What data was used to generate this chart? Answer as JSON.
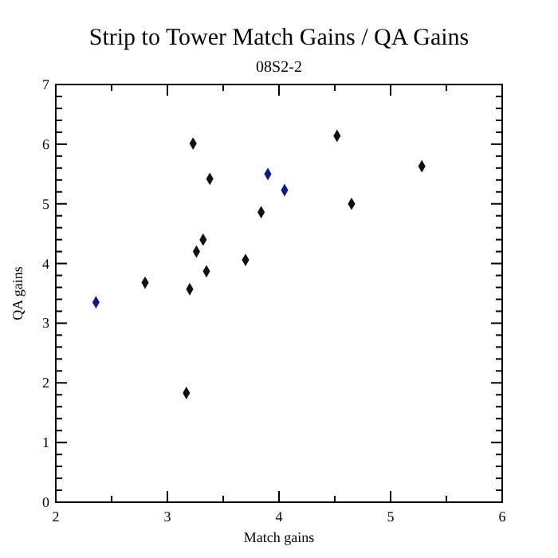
{
  "chart_data": {
    "type": "scatter",
    "title": "Strip to Tower Match Gains / QA Gains",
    "subtitle": "08S2-2",
    "xlabel": "Match gains",
    "ylabel": "QA gains",
    "x": [
      2.36,
      2.8,
      3.17,
      3.2,
      3.23,
      3.26,
      3.32,
      3.35,
      3.38,
      3.7,
      3.84,
      3.9,
      4.05,
      4.52,
      4.65,
      5.28
    ],
    "values": [
      3.35,
      3.68,
      1.83,
      3.57,
      6.01,
      4.2,
      4.4,
      3.87,
      5.42,
      4.06,
      4.86,
      5.5,
      5.23,
      6.14,
      5.0,
      5.63
    ],
    "colors": [
      "#0a1a8a",
      "#111111",
      "#111111",
      "#111111",
      "#111111",
      "#111111",
      "#111111",
      "#111111",
      "#111111",
      "#111111",
      "#111111",
      "#0a1a8a",
      "#0a1a8a",
      "#111111",
      "#111111",
      "#111111"
    ],
    "marker": "diamond",
    "xlim": [
      2,
      6
    ],
    "ylim": [
      0,
      7
    ],
    "xticks": [
      2,
      {
        "value": 2.5,
        "label": null
      },
      3,
      {
        "value": 3.5,
        "label": null
      },
      4,
      {
        "value": 4.5,
        "label": null
      },
      5,
      {
        "value": 5.5,
        "label": null
      },
      6
    ],
    "yticks": [
      0,
      {
        "value": 0.2,
        "label": null
      },
      {
        "value": 0.4,
        "label": null
      },
      {
        "value": 0.6,
        "label": null
      },
      {
        "value": 0.8,
        "label": null
      },
      1,
      {
        "value": 1.2,
        "label": null
      },
      {
        "value": 1.4,
        "label": null
      },
      {
        "value": 1.6,
        "label": null
      },
      {
        "value": 1.8,
        "label": null
      },
      2,
      {
        "value": 2.2,
        "label": null
      },
      {
        "value": 2.4,
        "label": null
      },
      {
        "value": 2.6,
        "label": null
      },
      {
        "value": 2.8,
        "label": null
      },
      3,
      {
        "value": 3.2,
        "label": null
      },
      {
        "value": 3.4,
        "label": null
      },
      {
        "value": 3.6,
        "label": null
      },
      {
        "value": 3.8,
        "label": null
      },
      4,
      {
        "value": 4.2,
        "label": null
      },
      {
        "value": 4.4,
        "label": null
      },
      {
        "value": 4.6,
        "label": null
      },
      {
        "value": 4.8,
        "label": null
      },
      5,
      {
        "value": 5.2,
        "label": null
      },
      {
        "value": 5.4,
        "label": null
      },
      {
        "value": 5.6,
        "label": null
      },
      {
        "value": 5.8,
        "label": null
      },
      6,
      {
        "value": 6.2,
        "label": null
      },
      {
        "value": 6.4,
        "label": null
      },
      {
        "value": 6.6,
        "label": null
      },
      {
        "value": 6.8,
        "label": null
      },
      7
    ],
    "grid": false
  }
}
